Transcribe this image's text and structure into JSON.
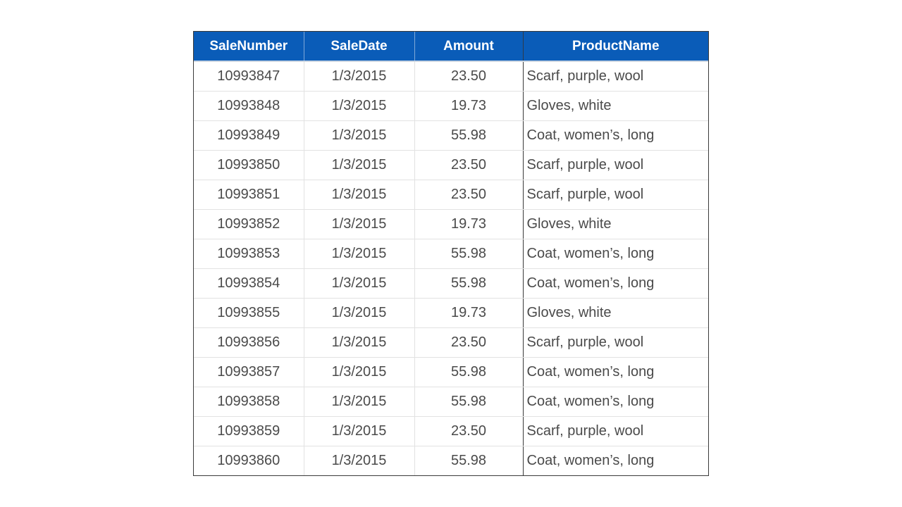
{
  "table": {
    "headers": {
      "sale_number": "SaleNumber",
      "sale_date": "SaleDate",
      "amount": "Amount",
      "product_name": "ProductName"
    },
    "header_bg_color": "#0a5cb8",
    "rows": [
      {
        "sale_number": "10993847",
        "sale_date": "1/3/2015",
        "amount": "23.50",
        "product_name": "Scarf, purple, wool"
      },
      {
        "sale_number": "10993848",
        "sale_date": "1/3/2015",
        "amount": "19.73",
        "product_name": "Gloves, white"
      },
      {
        "sale_number": "10993849",
        "sale_date": "1/3/2015",
        "amount": "55.98",
        "product_name": "Coat, women’s, long"
      },
      {
        "sale_number": "10993850",
        "sale_date": "1/3/2015",
        "amount": "23.50",
        "product_name": "Scarf, purple, wool"
      },
      {
        "sale_number": "10993851",
        "sale_date": "1/3/2015",
        "amount": "23.50",
        "product_name": "Scarf, purple, wool"
      },
      {
        "sale_number": "10993852",
        "sale_date": "1/3/2015",
        "amount": "19.73",
        "product_name": "Gloves, white"
      },
      {
        "sale_number": "10993853",
        "sale_date": "1/3/2015",
        "amount": "55.98",
        "product_name": "Coat, women’s, long"
      },
      {
        "sale_number": "10993854",
        "sale_date": "1/3/2015",
        "amount": "55.98",
        "product_name": "Coat, women’s, long"
      },
      {
        "sale_number": "10993855",
        "sale_date": "1/3/2015",
        "amount": "19.73",
        "product_name": "Gloves, white"
      },
      {
        "sale_number": "10993856",
        "sale_date": "1/3/2015",
        "amount": "23.50",
        "product_name": "Scarf, purple, wool"
      },
      {
        "sale_number": "10993857",
        "sale_date": "1/3/2015",
        "amount": "55.98",
        "product_name": "Coat, women’s, long"
      },
      {
        "sale_number": "10993858",
        "sale_date": "1/3/2015",
        "amount": "55.98",
        "product_name": "Coat, women’s, long"
      },
      {
        "sale_number": "10993859",
        "sale_date": "1/3/2015",
        "amount": "23.50",
        "product_name": "Scarf, purple, wool"
      },
      {
        "sale_number": "10993860",
        "sale_date": "1/3/2015",
        "amount": "55.98",
        "product_name": "Coat, women’s, long"
      }
    ]
  }
}
